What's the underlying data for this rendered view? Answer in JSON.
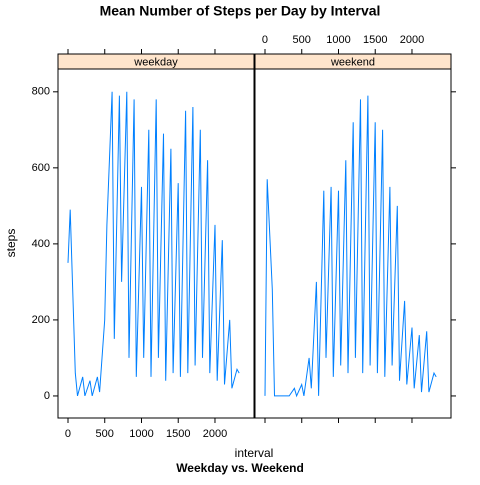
{
  "chart_data": {
    "type": "line",
    "title": "Mean Number of Steps per Day by Interval",
    "subtitle": "Weekday vs. Weekend",
    "xlabel": "interval",
    "ylabel": "steps",
    "x": [
      0,
      30,
      100,
      130,
      200,
      230,
      300,
      330,
      400,
      430,
      500,
      530,
      600,
      630,
      700,
      730,
      800,
      830,
      900,
      930,
      1000,
      1030,
      1100,
      1130,
      1200,
      1230,
      1300,
      1330,
      1400,
      1430,
      1500,
      1530,
      1600,
      1630,
      1700,
      1730,
      1800,
      1830,
      1900,
      1930,
      2000,
      2030,
      2100,
      2130,
      2200,
      2230,
      2300,
      2330
    ],
    "series": [
      {
        "name": "weekday",
        "color": "#0080ff",
        "values": [
          350,
          490,
          60,
          0,
          50,
          0,
          40,
          0,
          50,
          10,
          200,
          450,
          800,
          150,
          790,
          300,
          800,
          100,
          780,
          50,
          550,
          100,
          700,
          50,
          780,
          100,
          690,
          40,
          650,
          60,
          560,
          50,
          750,
          60,
          760,
          80,
          700,
          100,
          620,
          60,
          450,
          40,
          410,
          30,
          200,
          20,
          70,
          60
        ]
      },
      {
        "name": "weekend",
        "color": "#0080ff",
        "values": [
          0,
          570,
          280,
          0,
          0,
          0,
          0,
          0,
          20,
          0,
          30,
          0,
          100,
          20,
          300,
          0,
          540,
          100,
          550,
          50,
          540,
          80,
          620,
          60,
          720,
          100,
          780,
          60,
          790,
          80,
          720,
          60,
          700,
          50,
          550,
          80,
          500,
          40,
          250,
          30,
          180,
          20,
          160,
          10,
          170,
          10,
          60,
          50
        ]
      }
    ],
    "xlim": [
      -136,
      2531
    ],
    "ylim": [
      -58,
      860
    ],
    "xticks": [
      0,
      500,
      1000,
      1500,
      2000
    ],
    "yticks": [
      0,
      200,
      400,
      600,
      800
    ],
    "strip_color": "#ffe5cc"
  }
}
